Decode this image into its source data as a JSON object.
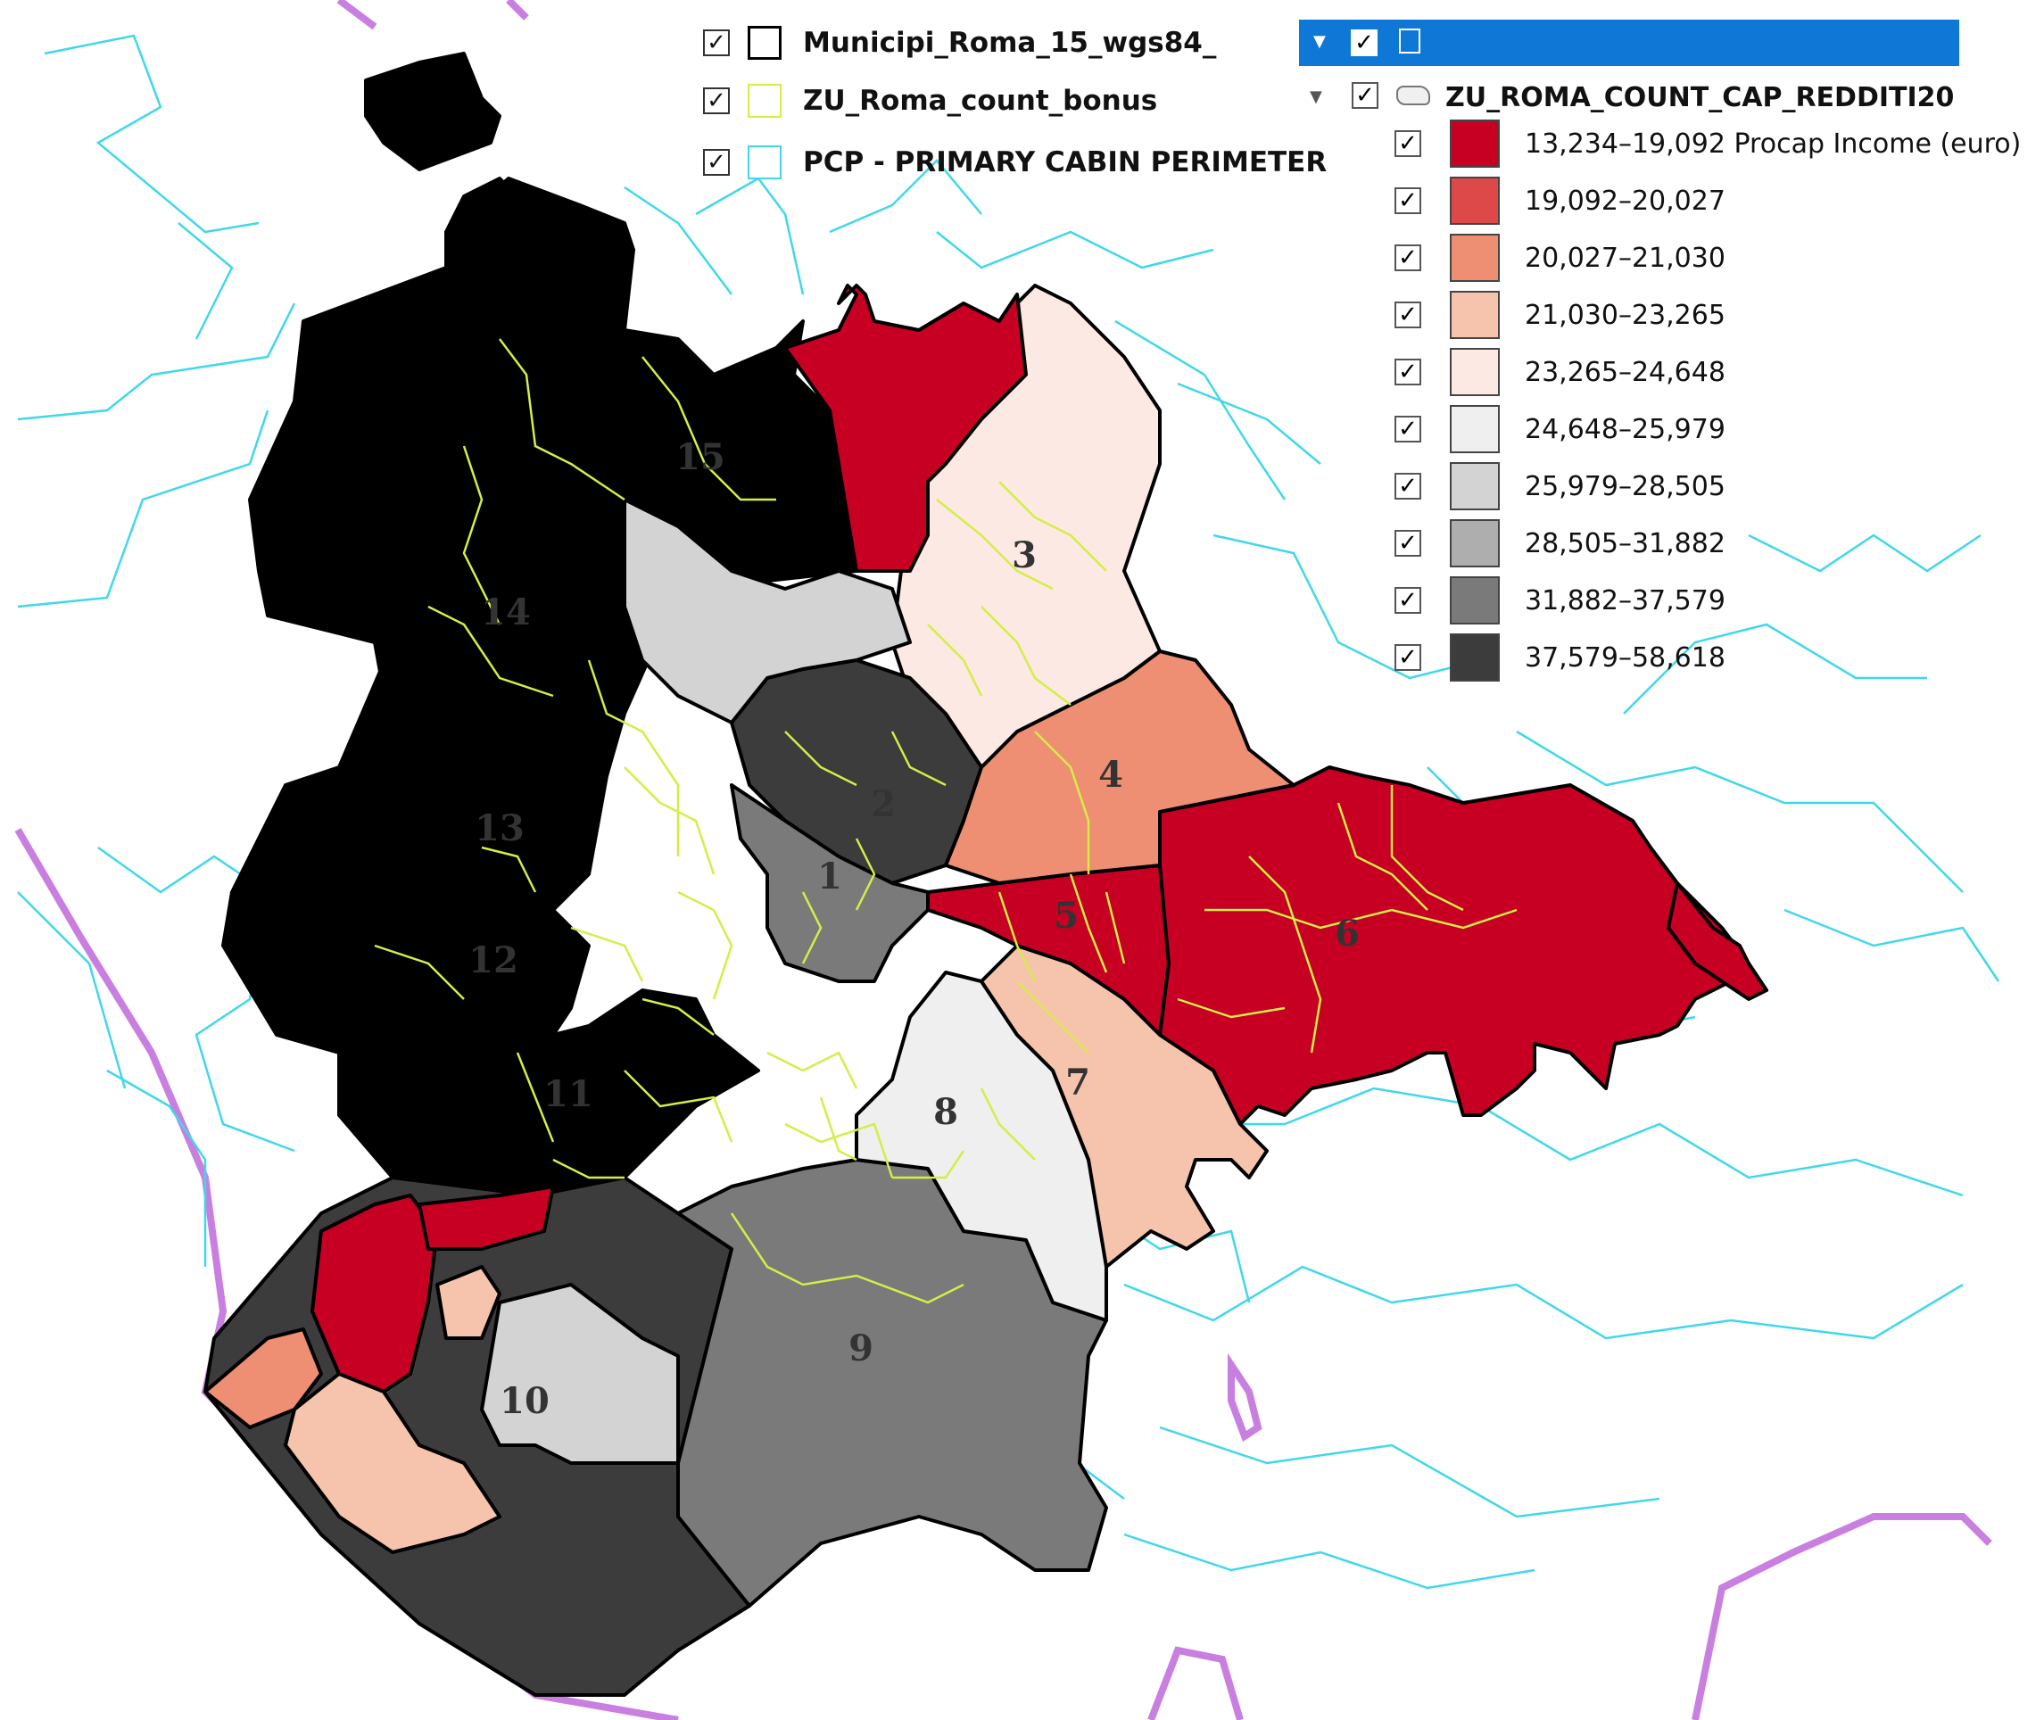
{
  "layers_top": [
    {
      "label": "Municipi_Roma_15_wgs84_",
      "checked": true,
      "swatch_color": "#000000"
    },
    {
      "label": "ZU_Roma_count_bonus",
      "checked": true,
      "swatch_color": "#d4ee46"
    },
    {
      "label": "PCP - PRIMARY CABIN PERIMETER",
      "checked": true,
      "swatch_color": "#3fd8ea"
    }
  ],
  "toc": {
    "group_checked": true,
    "layer_name": "ZU_ROMA_COUNT_CAP_REDDITI20",
    "layer_checked": true,
    "classes": [
      {
        "label": "13,234–19,092 Procap Income (euro)",
        "color": "#c70023",
        "checked": true
      },
      {
        "label": "19,092–20,027",
        "color": "#dd4848",
        "checked": true
      },
      {
        "label": "20,027–21,030",
        "color": "#ee8e72",
        "checked": true
      },
      {
        "label": "21,030–23,265",
        "color": "#f6c3ac",
        "checked": true
      },
      {
        "label": "23,265–24,648",
        "color": "#fde9e3",
        "checked": true
      },
      {
        "label": "24,648–25,979",
        "color": "#efefef",
        "checked": true
      },
      {
        "label": "25,979–28,505",
        "color": "#d3d3d3",
        "checked": true
      },
      {
        "label": "28,505–31,882",
        "color": "#aeaeae",
        "checked": true
      },
      {
        "label": "31,882–37,579",
        "color": "#7a7a7a",
        "checked": true
      },
      {
        "label": "37,579–58,618",
        "color": "#3c3c3c",
        "checked": true
      }
    ]
  },
  "municipi": [
    {
      "label": "1",
      "class": 8
    },
    {
      "label": "2",
      "class": 9
    },
    {
      "label": "3",
      "class": 4
    },
    {
      "label": "4",
      "class": 2
    },
    {
      "label": "5",
      "class": 0
    },
    {
      "label": "6",
      "class": 0
    },
    {
      "label": "7",
      "class": 3
    },
    {
      "label": "8",
      "class": 5
    },
    {
      "label": "9",
      "class": 8
    },
    {
      "label": "10",
      "class": 6
    },
    {
      "label": "11",
      "class": 1
    },
    {
      "label": "12",
      "class": 1
    },
    {
      "label": "13",
      "class": 1
    },
    {
      "label": "14",
      "class": 3
    },
    {
      "label": "15",
      "class": 3
    }
  ],
  "colors": {
    "municipi_border": "#000000",
    "zu_border": "#d4ee46",
    "pcp_line": "#3fd8ea",
    "coast_line": "#c97fe0",
    "toc_highlight": "#0f78d7"
  },
  "check_glyph": "✓",
  "icons": {
    "toc_expand": "triangle-down-icon",
    "group": "layers-group-icon",
    "polygon": "polygon-layer-icon"
  }
}
